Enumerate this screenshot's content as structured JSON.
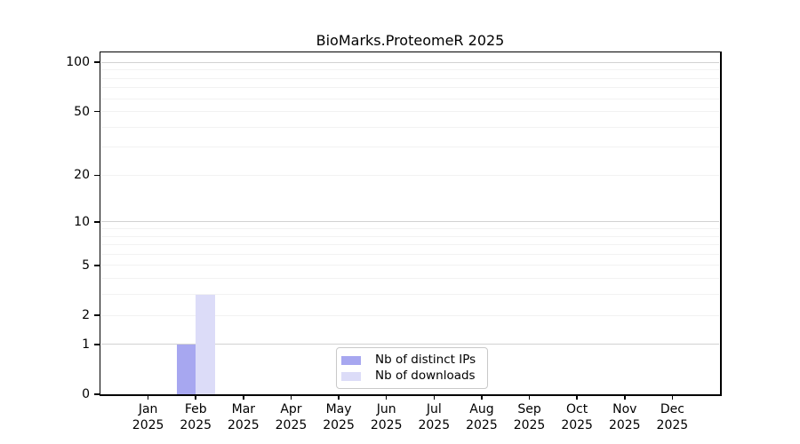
{
  "chart_data": {
    "type": "bar",
    "title": "BioMarks.ProteomeR 2025",
    "categories": [
      "Jan 2025",
      "Feb 2025",
      "Mar 2025",
      "Apr 2025",
      "May 2025",
      "Jun 2025",
      "Jul 2025",
      "Aug 2025",
      "Sep 2025",
      "Oct 2025",
      "Nov 2025",
      "Dec 2025"
    ],
    "months": [
      "Jan",
      "Feb",
      "Mar",
      "Apr",
      "May",
      "Jun",
      "Jul",
      "Aug",
      "Sep",
      "Oct",
      "Nov",
      "Dec"
    ],
    "year": "2025",
    "series": [
      {
        "name": "Nb of distinct IPs",
        "color": "#a7a7f0",
        "values": [
          0,
          1,
          0,
          0,
          0,
          0,
          0,
          0,
          0,
          0,
          0,
          0
        ]
      },
      {
        "name": "Nb of downloads",
        "color": "#dcdcf8",
        "values": [
          0,
          3,
          0,
          0,
          0,
          0,
          0,
          0,
          0,
          0,
          0,
          0
        ]
      }
    ],
    "xlabel": "",
    "ylabel": "",
    "yscale": "log1p",
    "ylim": [
      0,
      115
    ],
    "yticks": [
      0,
      1,
      2,
      5,
      10,
      20,
      50,
      100
    ],
    "major_gridlines": [
      1,
      10,
      100
    ],
    "minor_gridlines": [
      2,
      3,
      4,
      5,
      6,
      7,
      8,
      9,
      20,
      30,
      40,
      50,
      60,
      70,
      80,
      90
    ],
    "grid": "on",
    "legend_position": "bottom-center"
  },
  "colors": {
    "background": "#ffffff",
    "axis": "#000000",
    "grid_minor": "#f2f2f2",
    "grid_major": "#d2d2d2",
    "legend_border": "#c9c9c9",
    "bar_distinct_ips": "#a7a7f0",
    "bar_downloads": "#dcdcf8"
  }
}
